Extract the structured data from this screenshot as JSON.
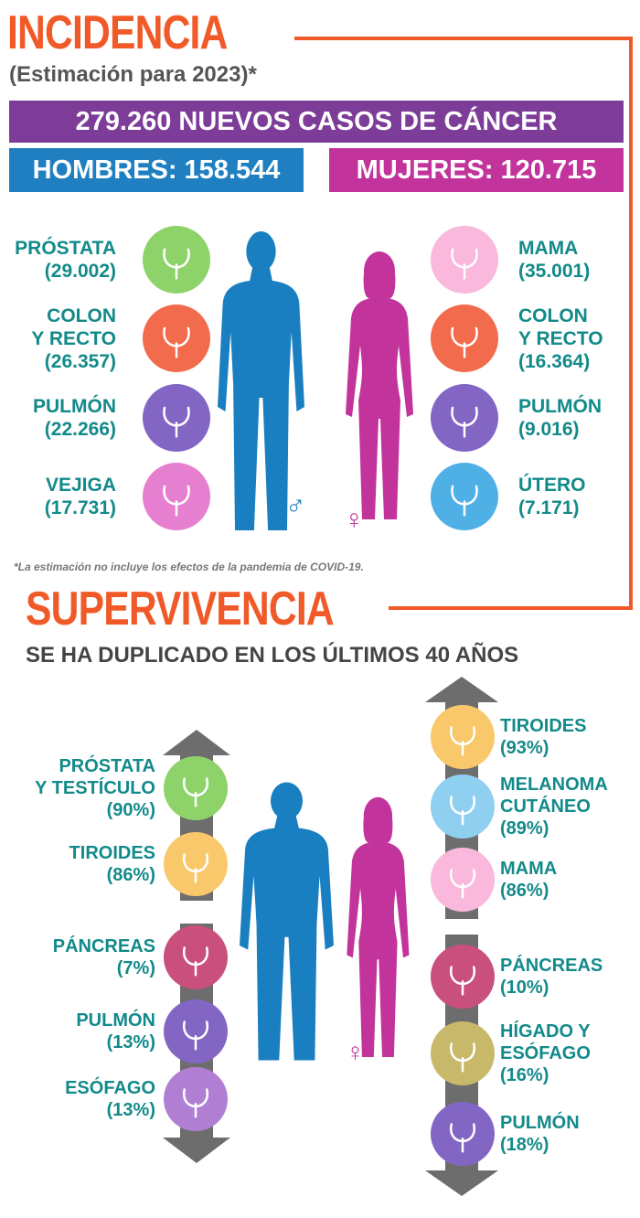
{
  "incidence": {
    "title": "INCIDENCIA",
    "subtitle": "(Estimación para 2023)*",
    "total": "279.260 NUEVOS CASOS DE CÁNCER",
    "men_total": "HOMBRES: 158.544",
    "women_total": "MUJERES: 120.715",
    "men": [
      {
        "lines": [
          "PRÓSTATA"
        ],
        "value": "(29.002)"
      },
      {
        "lines": [
          "COLON",
          "Y RECTO"
        ],
        "value": "(26.357)"
      },
      {
        "lines": [
          "PULMÓN"
        ],
        "value": "(22.266)"
      },
      {
        "lines": [
          "VEJIGA"
        ],
        "value": "(17.731)"
      }
    ],
    "women": [
      {
        "lines": [
          "MAMA"
        ],
        "value": "(35.001)"
      },
      {
        "lines": [
          "COLON",
          "Y RECTO"
        ],
        "value": "(16.364)"
      },
      {
        "lines": [
          "PULMÓN"
        ],
        "value": "(9.016)"
      },
      {
        "lines": [
          "ÚTERO"
        ],
        "value": "(7.171)"
      }
    ],
    "footnote": "*La estimación no incluye los efectos de la pandemia de COVID-19."
  },
  "survival": {
    "title": "SUPERVIVENCIA",
    "subtitle": "SE HA DUPLICADO EN LOS ÚLTIMOS 40 AÑOS",
    "men": [
      {
        "lines": [
          "PRÓSTATA",
          "Y TESTÍCULO"
        ],
        "value": "(90%)"
      },
      {
        "lines": [
          "TIROIDES"
        ],
        "value": "(86%)"
      },
      {
        "lines": [
          "PÁNCREAS"
        ],
        "value": "(7%)"
      },
      {
        "lines": [
          "PULMÓN"
        ],
        "value": "(13%)"
      },
      {
        "lines": [
          "ESÓFAGO"
        ],
        "value": "(13%)"
      }
    ],
    "women": [
      {
        "lines": [
          "TIROIDES"
        ],
        "value": "(93%)"
      },
      {
        "lines": [
          "MELANOMA",
          "CUTÁNEO"
        ],
        "value": "(89%)"
      },
      {
        "lines": [
          "MAMA"
        ],
        "value": "(86%)"
      },
      {
        "lines": [
          "PÁNCREAS"
        ],
        "value": "(10%)"
      },
      {
        "lines": [
          "HÍGADO Y",
          "ESÓFAGO"
        ],
        "value": "(16%)"
      },
      {
        "lines": [
          "PULMÓN"
        ],
        "value": "(18%)"
      }
    ]
  }
}
